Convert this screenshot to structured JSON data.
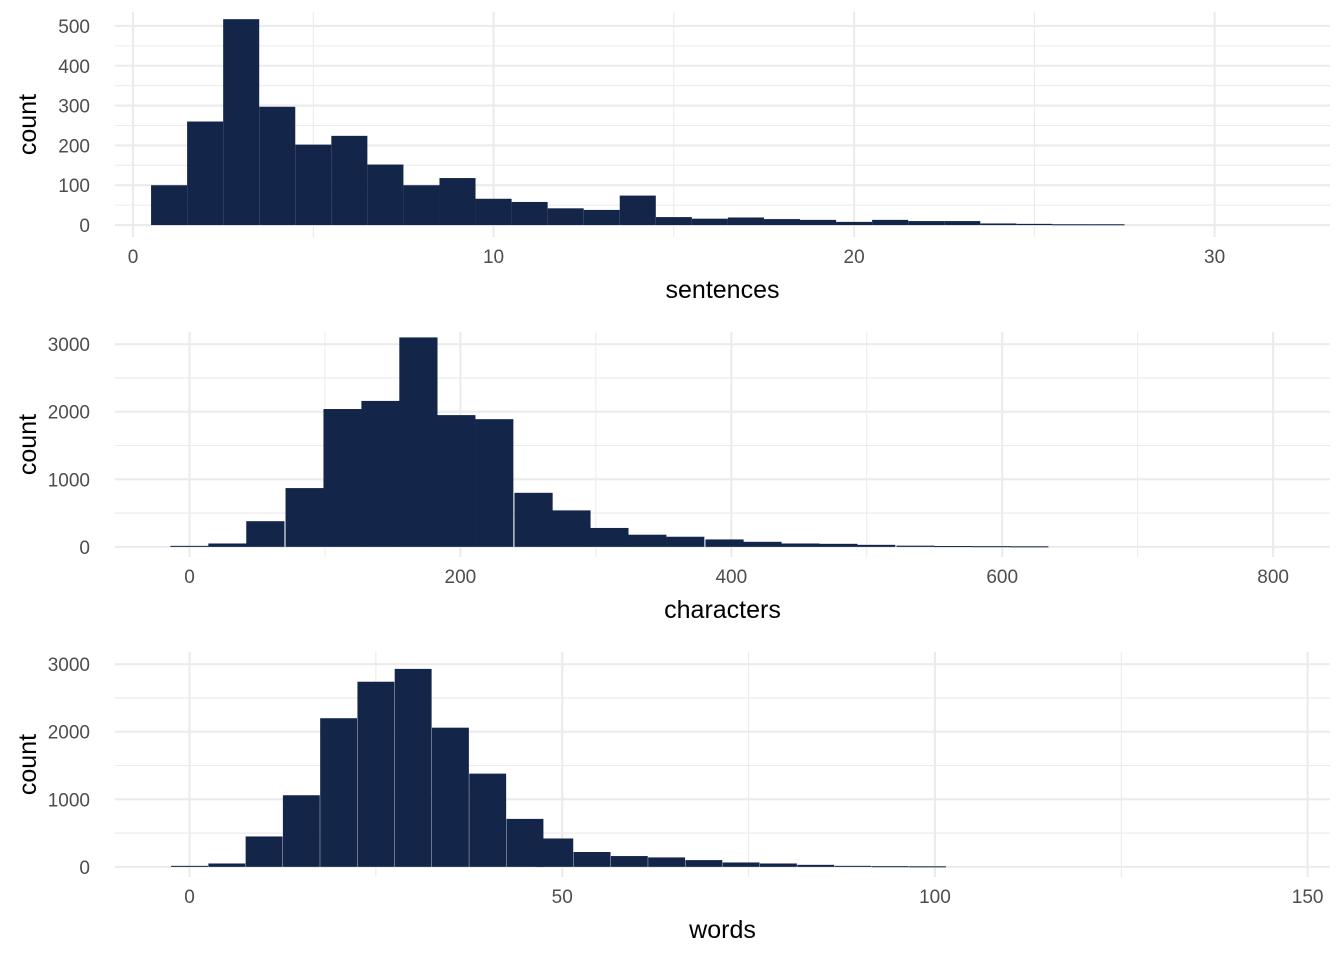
{
  "colors": {
    "bar": "#14254a",
    "grid": "#ebebeb",
    "tick_text": "#4d4d4d",
    "axis_text": "#000000"
  },
  "chart_data": [
    {
      "type": "bar",
      "xlabel": "sentences",
      "ylabel": "count",
      "xlim": [
        -0.5,
        33.2
      ],
      "ylim": [
        -30,
        535
      ],
      "x_ticks": [
        0,
        10,
        20,
        30
      ],
      "y_ticks": [
        0,
        100,
        200,
        300,
        400,
        500
      ],
      "grid": true,
      "bin_width": 1.0,
      "bins": [
        {
          "x": 1,
          "count": 100
        },
        {
          "x": 2,
          "count": 260
        },
        {
          "x": 3,
          "count": 517
        },
        {
          "x": 4,
          "count": 297
        },
        {
          "x": 5,
          "count": 202
        },
        {
          "x": 6,
          "count": 224
        },
        {
          "x": 7,
          "count": 152
        },
        {
          "x": 8,
          "count": 100
        },
        {
          "x": 9,
          "count": 118
        },
        {
          "x": 10,
          "count": 66
        },
        {
          "x": 11,
          "count": 58
        },
        {
          "x": 12,
          "count": 42
        },
        {
          "x": 13,
          "count": 38
        },
        {
          "x": 14,
          "count": 74
        },
        {
          "x": 15,
          "count": 20
        },
        {
          "x": 16,
          "count": 16
        },
        {
          "x": 17,
          "count": 19
        },
        {
          "x": 18,
          "count": 15
        },
        {
          "x": 19,
          "count": 13
        },
        {
          "x": 20,
          "count": 8
        },
        {
          "x": 21,
          "count": 13
        },
        {
          "x": 22,
          "count": 10
        },
        {
          "x": 23,
          "count": 10
        },
        {
          "x": 24,
          "count": 4
        },
        {
          "x": 25,
          "count": 3
        },
        {
          "x": 26,
          "count": 2
        },
        {
          "x": 27,
          "count": 2
        }
      ]
    },
    {
      "type": "bar",
      "xlabel": "characters",
      "ylabel": "count",
      "xlim": [
        -55,
        842
      ],
      "ylim": [
        -150,
        3180
      ],
      "x_ticks": [
        0,
        200,
        400,
        600,
        800
      ],
      "y_ticks": [
        0,
        1000,
        2000,
        3000
      ],
      "grid": true,
      "bin_width": 28.2,
      "bins": [
        {
          "x": 0,
          "count": 15
        },
        {
          "x": 28,
          "count": 50
        },
        {
          "x": 56,
          "count": 380
        },
        {
          "x": 85,
          "count": 870
        },
        {
          "x": 113,
          "count": 2040
        },
        {
          "x": 141,
          "count": 2160
        },
        {
          "x": 169,
          "count": 3100
        },
        {
          "x": 197,
          "count": 1950
        },
        {
          "x": 225,
          "count": 1890
        },
        {
          "x": 254,
          "count": 800
        },
        {
          "x": 282,
          "count": 540
        },
        {
          "x": 310,
          "count": 280
        },
        {
          "x": 338,
          "count": 180
        },
        {
          "x": 366,
          "count": 150
        },
        {
          "x": 395,
          "count": 110
        },
        {
          "x": 423,
          "count": 75
        },
        {
          "x": 451,
          "count": 50
        },
        {
          "x": 479,
          "count": 45
        },
        {
          "x": 507,
          "count": 30
        },
        {
          "x": 536,
          "count": 18
        },
        {
          "x": 564,
          "count": 12
        },
        {
          "x": 592,
          "count": 10
        },
        {
          "x": 620,
          "count": 8
        }
      ]
    },
    {
      "type": "bar",
      "xlabel": "words",
      "ylabel": "count",
      "xlim": [
        -10,
        153
      ],
      "ylim": [
        -150,
        3180
      ],
      "x_ticks": [
        0,
        50,
        100,
        150
      ],
      "y_ticks": [
        0,
        1000,
        2000,
        3000
      ],
      "grid": true,
      "bin_width": 4.95,
      "bins": [
        {
          "x": 0,
          "count": 15
        },
        {
          "x": 5,
          "count": 50
        },
        {
          "x": 10,
          "count": 450
        },
        {
          "x": 15,
          "count": 1060
        },
        {
          "x": 20,
          "count": 2200
        },
        {
          "x": 25,
          "count": 2740
        },
        {
          "x": 30,
          "count": 2930
        },
        {
          "x": 35,
          "count": 2060
        },
        {
          "x": 40,
          "count": 1380
        },
        {
          "x": 45,
          "count": 710
        },
        {
          "x": 49,
          "count": 420
        },
        {
          "x": 54,
          "count": 220
        },
        {
          "x": 59,
          "count": 160
        },
        {
          "x": 64,
          "count": 140
        },
        {
          "x": 69,
          "count": 100
        },
        {
          "x": 74,
          "count": 65
        },
        {
          "x": 79,
          "count": 50
        },
        {
          "x": 84,
          "count": 30
        },
        {
          "x": 89,
          "count": 15
        },
        {
          "x": 94,
          "count": 10
        },
        {
          "x": 99,
          "count": 8
        }
      ]
    }
  ]
}
